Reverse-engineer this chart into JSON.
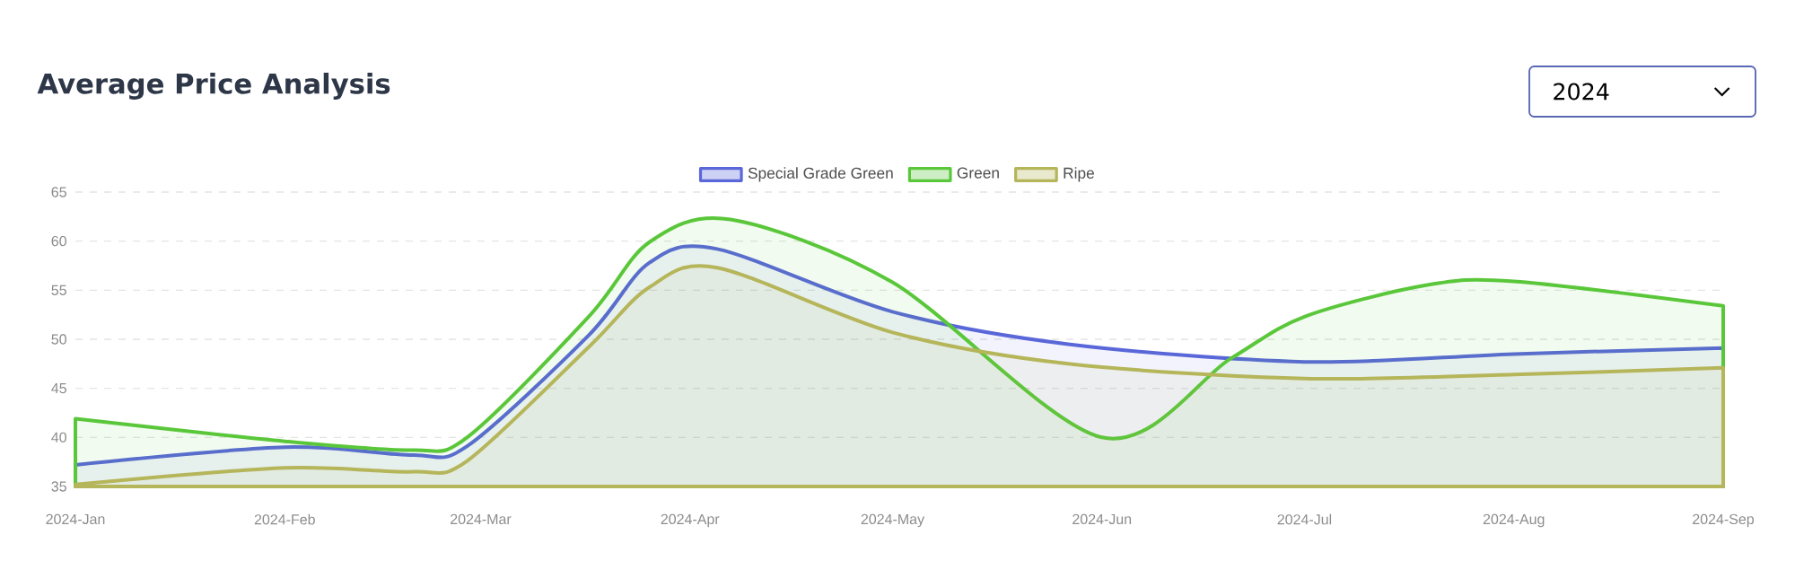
{
  "chart_data": {
    "type": "area",
    "title": "Average Price Analysis",
    "annotations": [
      "2024"
    ],
    "xlim": [
      "2024-01",
      "2024-09"
    ],
    "xticks": [
      {
        "value": "2024-01",
        "label": "2024-Jan"
      },
      {
        "value": "2024-02",
        "label": "2024-Feb"
      },
      {
        "value": "2024-03",
        "label": "2024-Mar"
      },
      {
        "value": "2024-04",
        "label": "2024-Apr"
      },
      {
        "value": "2024-05",
        "label": "2024-May"
      },
      {
        "value": "2024-06",
        "label": "2024-Jun"
      },
      {
        "value": "2024-07",
        "label": "2024-Jul"
      },
      {
        "value": "2024-08",
        "label": "2024-Aug"
      },
      {
        "value": "2024-09",
        "label": "2024-Sep"
      }
    ],
    "ylim": [
      35,
      65
    ],
    "yticks": [
      35,
      40,
      45,
      50,
      55,
      60,
      65
    ],
    "grid": "y",
    "legend": "top",
    "marker": "none",
    "line_style": "solid",
    "series": [
      {
        "name": "Special Grade Green",
        "color": "#5a67d8",
        "x": [
          "2024-01-01",
          "2024-02-01",
          "2024-02-20",
          "2024-02-28",
          "2024-03-17",
          "2024-03-26",
          "2024-04-05",
          "2024-05-01",
          "2024-05-27",
          "2024-07-01",
          "2024-08-01",
          "2024-09-01"
        ],
        "values": [
          37.2,
          39.0,
          38.2,
          39.1,
          50.4,
          57.8,
          59.2,
          52.8,
          49.5,
          47.7,
          48.5,
          49.1
        ]
      },
      {
        "name": "Green",
        "color": "#5ac73a",
        "x": [
          "2024-01-01",
          "2024-02-01",
          "2024-02-20",
          "2024-02-28",
          "2024-03-17",
          "2024-03-26",
          "2024-04-07",
          "2024-05-01",
          "2024-06-01",
          "2024-06-20",
          "2024-07-01",
          "2024-07-19",
          "2024-08-01",
          "2024-09-01"
        ],
        "values": [
          41.9,
          39.6,
          38.7,
          40.0,
          52.3,
          59.9,
          62.2,
          55.8,
          40.0,
          48.0,
          52.3,
          55.5,
          55.9,
          53.4
        ]
      },
      {
        "name": "Ripe",
        "color": "#b5b55a",
        "x": [
          "2024-01-01",
          "2024-02-01",
          "2024-02-20",
          "2024-02-28",
          "2024-03-17",
          "2024-03-26",
          "2024-04-05",
          "2024-05-01",
          "2024-05-27",
          "2024-07-01",
          "2024-08-01",
          "2024-09-01"
        ],
        "values": [
          35.2,
          36.9,
          36.5,
          37.6,
          49.2,
          55.3,
          57.3,
          50.7,
          47.5,
          46.0,
          46.4,
          47.1
        ]
      }
    ]
  }
}
